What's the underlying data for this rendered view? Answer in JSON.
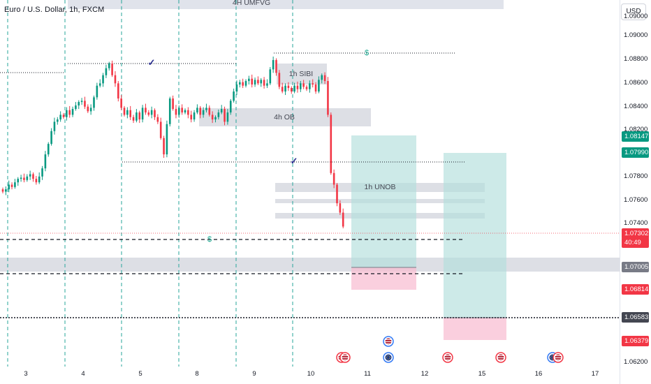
{
  "header": {
    "symbol_title": "Euro / U.S. Dollar, 1h, FXCM",
    "currency_button": "USD"
  },
  "price_axis": {
    "labels": [
      "1.09000",
      "1.08800",
      "1.08600",
      "1.08400",
      "1.08200",
      "1.07800",
      "1.07600",
      "1.07400",
      "1.06200"
    ],
    "badges": [
      {
        "text": "1.08147",
        "color": "#089981"
      },
      {
        "text": "1.07990",
        "color": "#089981"
      },
      {
        "text": "1.07302",
        "color": "#f23645"
      },
      {
        "text": "40:49",
        "color": "#f23645"
      },
      {
        "text": "1.07005",
        "color": "#787b86"
      },
      {
        "text": "1.06814",
        "color": "#f23645"
      },
      {
        "text": "1.06583",
        "color": "#434651"
      },
      {
        "text": "1.06379",
        "color": "#f23645"
      }
    ]
  },
  "time_axis": {
    "labels": [
      "3",
      "4",
      "5",
      "8",
      "9",
      "10",
      "11",
      "12",
      "15",
      "16",
      "17"
    ]
  },
  "zones": {
    "umfvg": "4H UMFVG",
    "sibi": "1h SIBI",
    "ob": "4h OB",
    "unob": "1h UNOB"
  },
  "annotations": {
    "dollar_mark": "$",
    "check_mark": "✓"
  },
  "colors": {
    "bull": "#089981",
    "bear": "#f23645",
    "zone_gray": "#d1d4dc",
    "long_target": "#b2dfdb",
    "long_stop": "#f8bbd0",
    "vline_cyan": "#26a69a"
  },
  "chart_data": {
    "type": "candlestick",
    "instrument": "EURUSD",
    "timeframe": "1h",
    "price_range": [
      1.0615,
      1.0925
    ],
    "current_price": 1.07302,
    "countdown": "40:49",
    "levels": {
      "long_target_1": 1.08147,
      "long_target_2": 1.0799,
      "entry_zone": 1.07005,
      "stop_1": 1.06814,
      "dotted_level": 1.06583,
      "stop_2": 1.06379
    },
    "closes": [
      1.0766,
      1.0768,
      1.0772,
      1.077,
      1.0774,
      1.0777,
      1.0778,
      1.0776,
      1.0779,
      1.0781,
      1.0777,
      1.0774,
      1.0779,
      1.0786,
      1.0798,
      1.0807,
      1.0818,
      1.0826,
      1.0828,
      1.0832,
      1.083,
      1.0836,
      1.0832,
      1.0837,
      1.084,
      1.0843,
      1.0844,
      1.0839,
      1.0835,
      1.0838,
      1.0847,
      1.0857,
      1.0859,
      1.0866,
      1.0872,
      1.0876,
      1.0866,
      1.0859,
      1.0846,
      1.0838,
      1.0832,
      1.0836,
      1.083,
      1.0827,
      1.0834,
      1.0828,
      1.0838,
      1.0834,
      1.0832,
      1.0836,
      1.083,
      1.0826,
      1.0812,
      1.0798,
      1.0824,
      1.0846,
      1.0837,
      1.0832,
      1.0838,
      1.0834,
      1.0836,
      1.0832,
      1.0828,
      1.0834,
      1.0838,
      1.0832,
      1.0836,
      1.0838,
      1.0832,
      1.0828,
      1.083,
      1.0834,
      1.0837,
      1.0826,
      1.0834,
      1.0844,
      1.0852,
      1.0858,
      1.086,
      1.0857,
      1.0861,
      1.0863,
      1.0858,
      1.0862,
      1.0859,
      1.0862,
      1.0857,
      1.0859,
      1.0871,
      1.0879,
      1.0868,
      1.0856,
      1.0852,
      1.0857,
      1.0855,
      1.0852,
      1.0857,
      1.0854,
      1.0859,
      1.0856,
      1.0854,
      1.0859,
      1.0858,
      1.0852,
      1.0862,
      1.0866,
      1.0861,
      1.0832,
      1.0782,
      1.0772,
      1.0756,
      1.0748,
      1.0736
    ]
  }
}
